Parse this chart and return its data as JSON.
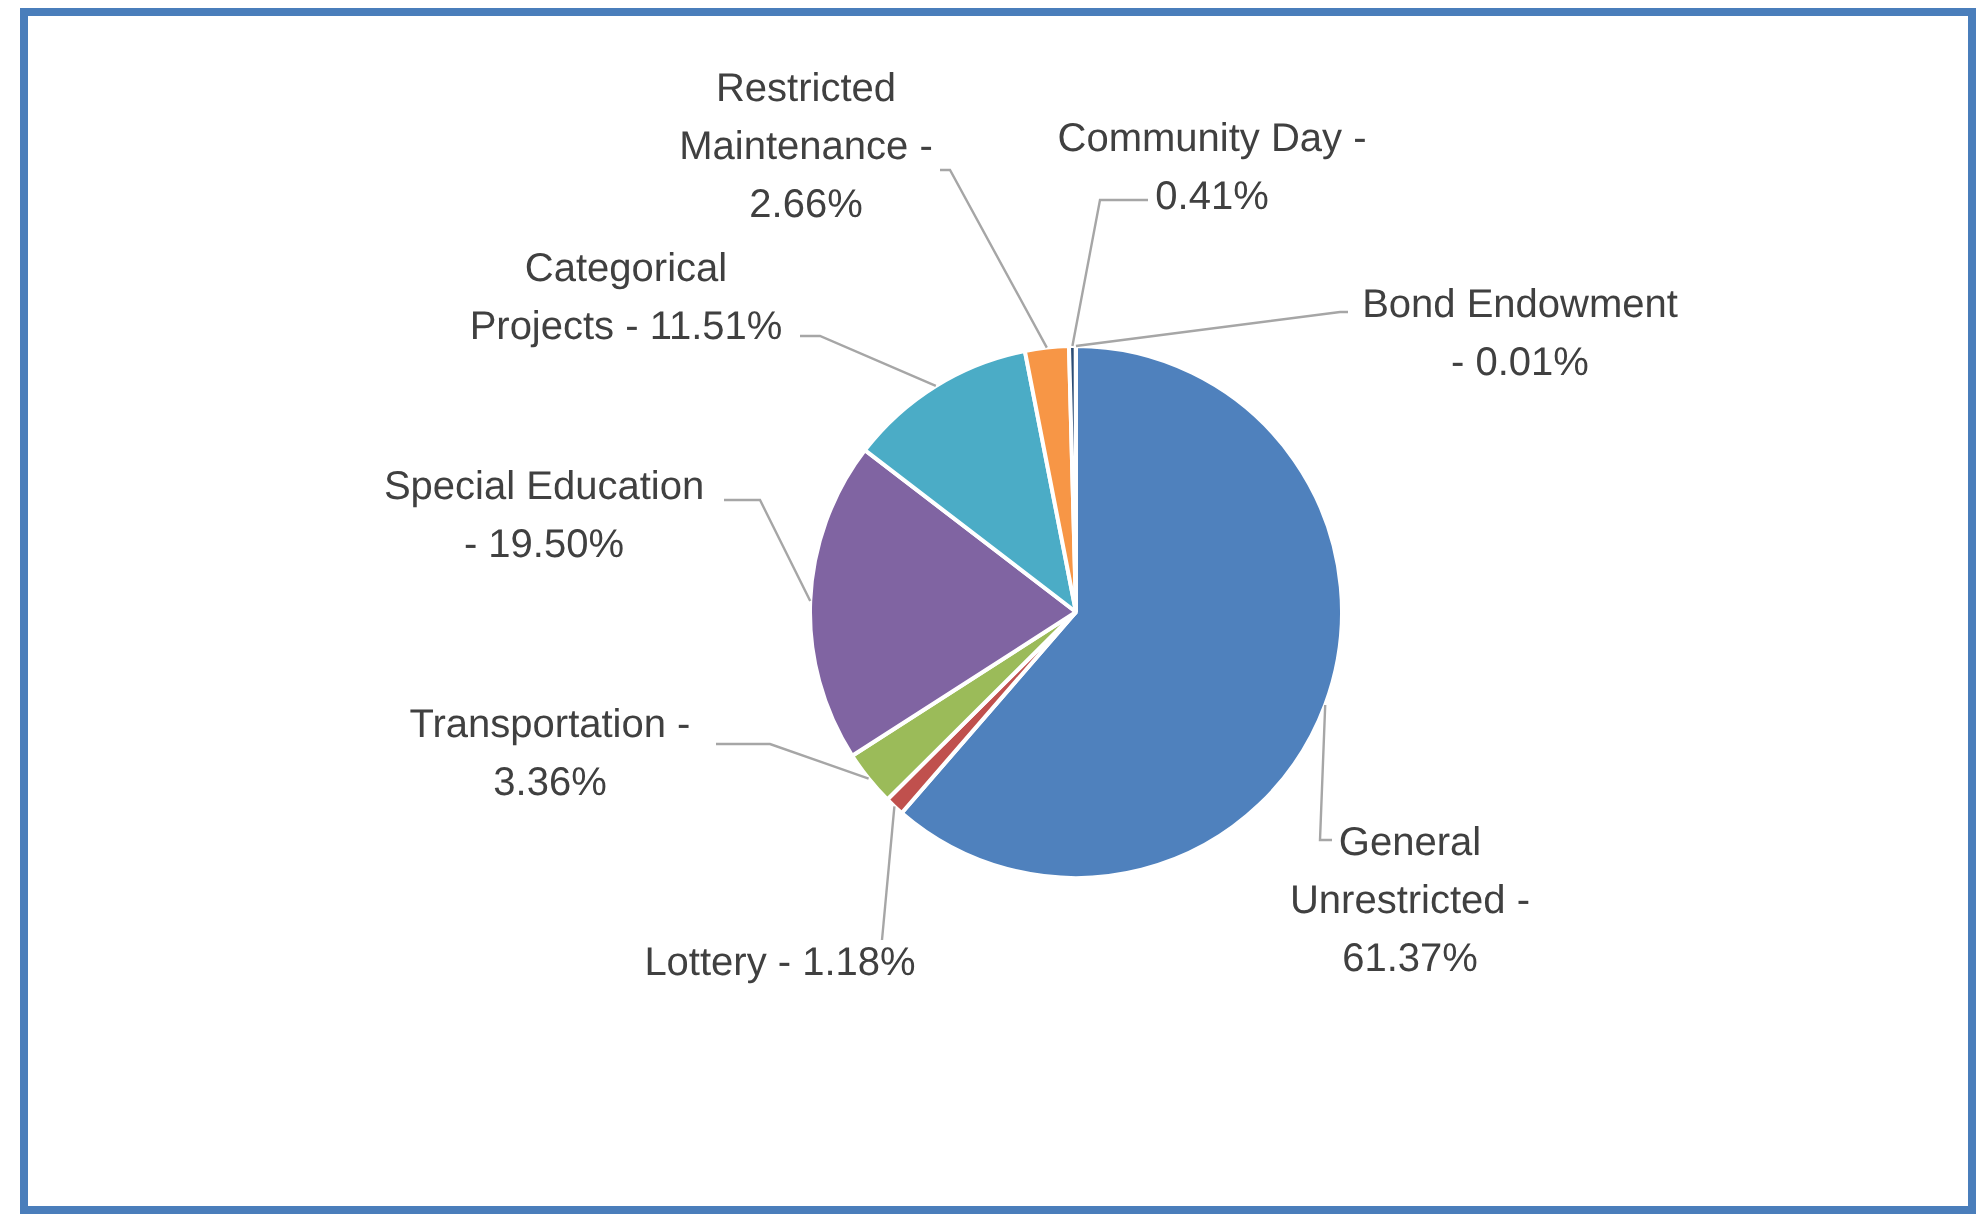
{
  "chart_data": {
    "type": "pie",
    "categories": [
      "General Unrestricted -",
      "Lottery -",
      "Transportation -",
      "Special Education -",
      "Categorical Projects -",
      "Restricted Maintenance -",
      "Community Day -",
      "Bond Endowment -"
    ],
    "values": [
      61.37,
      1.18,
      3.36,
      19.5,
      11.51,
      2.66,
      0.41,
      0.01
    ],
    "value_labels": [
      "61.37%",
      "1.18%",
      "3.36%",
      "19.50%",
      "11.51%",
      "2.66%",
      "0.41%",
      "0.01%"
    ],
    "colors": [
      "#4f81bd",
      "#c0504d",
      "#9bbb59",
      "#8064a2",
      "#4bacc6",
      "#f79646",
      "#2c4d75",
      "#772c2a"
    ],
    "legend": false
  }
}
